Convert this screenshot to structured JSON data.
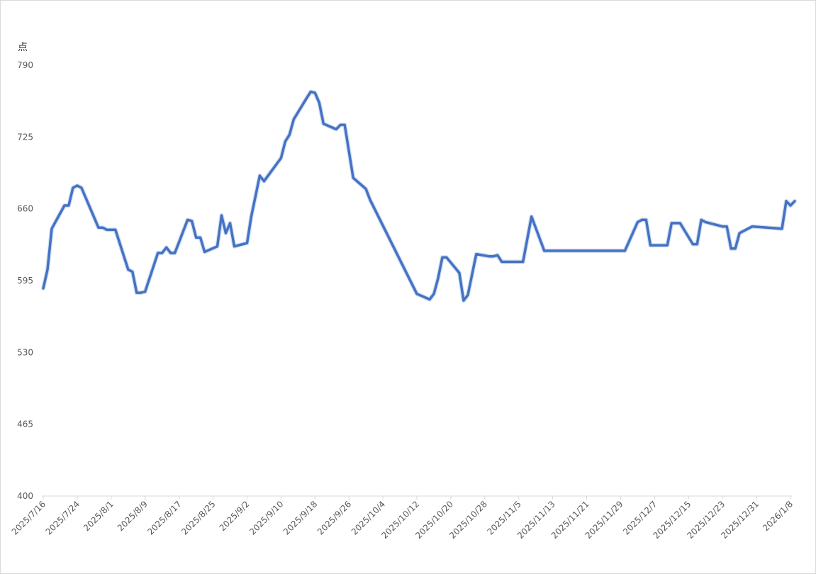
{
  "chart_data": {
    "type": "line",
    "title": "",
    "ylabel": "点",
    "xlabel": "",
    "ylim": [
      400,
      790
    ],
    "y_ticks": [
      400,
      465,
      530,
      595,
      660,
      725,
      790
    ],
    "x_tick_labels": [
      "2025/7/16",
      "2025/7/24",
      "2025/8/1",
      "2025/8/9",
      "2025/8/17",
      "2025/8/25",
      "2025/9/2",
      "2025/9/10",
      "2025/9/18",
      "2025/9/26",
      "2025/10/4",
      "2025/10/12",
      "2025/10/20",
      "2025/10/28",
      "2025/11/5",
      "2025/11/13",
      "2025/11/21",
      "2025/11/29",
      "2025/12/7",
      "2025/12/15",
      "2025/12/23",
      "2025/12/31",
      "2026/1/8"
    ],
    "grid": false,
    "legend": "none",
    "series": [
      {
        "color": "#4472C4",
        "points": [
          [
            "2025/7/16",
            588
          ],
          [
            "2025/7/17",
            605
          ],
          [
            "2025/7/18",
            642
          ],
          [
            "2025/7/21",
            663
          ],
          [
            "2025/7/22",
            663
          ],
          [
            "2025/7/23",
            679
          ],
          [
            "2025/7/24",
            681
          ],
          [
            "2025/7/25",
            679
          ],
          [
            "2025/7/29",
            643
          ],
          [
            "2025/7/30",
            643
          ],
          [
            "2025/7/31",
            641
          ],
          [
            "2025/8/1",
            641
          ],
          [
            "2025/8/2",
            641
          ],
          [
            "2025/8/5",
            605
          ],
          [
            "2025/8/6",
            603
          ],
          [
            "2025/8/7",
            584
          ],
          [
            "2025/8/8",
            584
          ],
          [
            "2025/8/9",
            585
          ],
          [
            "2025/8/12",
            620
          ],
          [
            "2025/8/13",
            620
          ],
          [
            "2025/8/14",
            625
          ],
          [
            "2025/8/15",
            620
          ],
          [
            "2025/8/16",
            620
          ],
          [
            "2025/8/19",
            650
          ],
          [
            "2025/8/20",
            649
          ],
          [
            "2025/8/21",
            634
          ],
          [
            "2025/8/22",
            634
          ],
          [
            "2025/8/23",
            621
          ],
          [
            "2025/8/26",
            626
          ],
          [
            "2025/8/27",
            654
          ],
          [
            "2025/8/28",
            638
          ],
          [
            "2025/8/29",
            647
          ],
          [
            "2025/8/30",
            626
          ],
          [
            "2025/9/2",
            629
          ],
          [
            "2025/9/3",
            653
          ],
          [
            "2025/9/5",
            690
          ],
          [
            "2025/9/6",
            685
          ],
          [
            "2025/9/10",
            706
          ],
          [
            "2025/9/11",
            721
          ],
          [
            "2025/9/12",
            727
          ],
          [
            "2025/9/13",
            741
          ],
          [
            "2025/9/16",
            760
          ],
          [
            "2025/9/17",
            766
          ],
          [
            "2025/9/18",
            765
          ],
          [
            "2025/9/19",
            756
          ],
          [
            "2025/9/20",
            737
          ],
          [
            "2025/9/23",
            732
          ],
          [
            "2025/9/24",
            736
          ],
          [
            "2025/9/25",
            736
          ],
          [
            "2025/9/27",
            688
          ],
          [
            "2025/9/30",
            678
          ],
          [
            "2025/10/1",
            668
          ],
          [
            "2025/10/12",
            583
          ],
          [
            "2025/10/15",
            578
          ],
          [
            "2025/10/16",
            583
          ],
          [
            "2025/10/17",
            597
          ],
          [
            "2025/10/18",
            616
          ],
          [
            "2025/10/19",
            616
          ],
          [
            "2025/10/22",
            602
          ],
          [
            "2025/10/23",
            577
          ],
          [
            "2025/10/24",
            582
          ],
          [
            "2025/10/26",
            619
          ],
          [
            "2025/10/29",
            617
          ],
          [
            "2025/10/30",
            617
          ],
          [
            "2025/10/31",
            618
          ],
          [
            "2025/11/1",
            612
          ],
          [
            "2025/11/5",
            612
          ],
          [
            "2025/11/6",
            612
          ],
          [
            "2025/11/8",
            653
          ],
          [
            "2025/11/11",
            622
          ],
          [
            "2025/11/29",
            622
          ],
          [
            "2025/11/30",
            622
          ],
          [
            "2025/12/3",
            648
          ],
          [
            "2025/12/4",
            650
          ],
          [
            "2025/12/5",
            650
          ],
          [
            "2025/12/6",
            627
          ],
          [
            "2025/12/10",
            627
          ],
          [
            "2025/12/11",
            647
          ],
          [
            "2025/12/13",
            647
          ],
          [
            "2025/12/16",
            628
          ],
          [
            "2025/12/17",
            628
          ],
          [
            "2025/12/18",
            650
          ],
          [
            "2025/12/19",
            648
          ],
          [
            "2025/12/23",
            644
          ],
          [
            "2025/12/24",
            644
          ],
          [
            "2025/12/25",
            624
          ],
          [
            "2025/12/26",
            624
          ],
          [
            "2025/12/27",
            638
          ],
          [
            "2025/12/30",
            644
          ],
          [
            "2026/1/6",
            642
          ],
          [
            "2026/1/7",
            667
          ],
          [
            "2026/1/8",
            663
          ],
          [
            "2026/1/9",
            667
          ]
        ]
      }
    ]
  }
}
